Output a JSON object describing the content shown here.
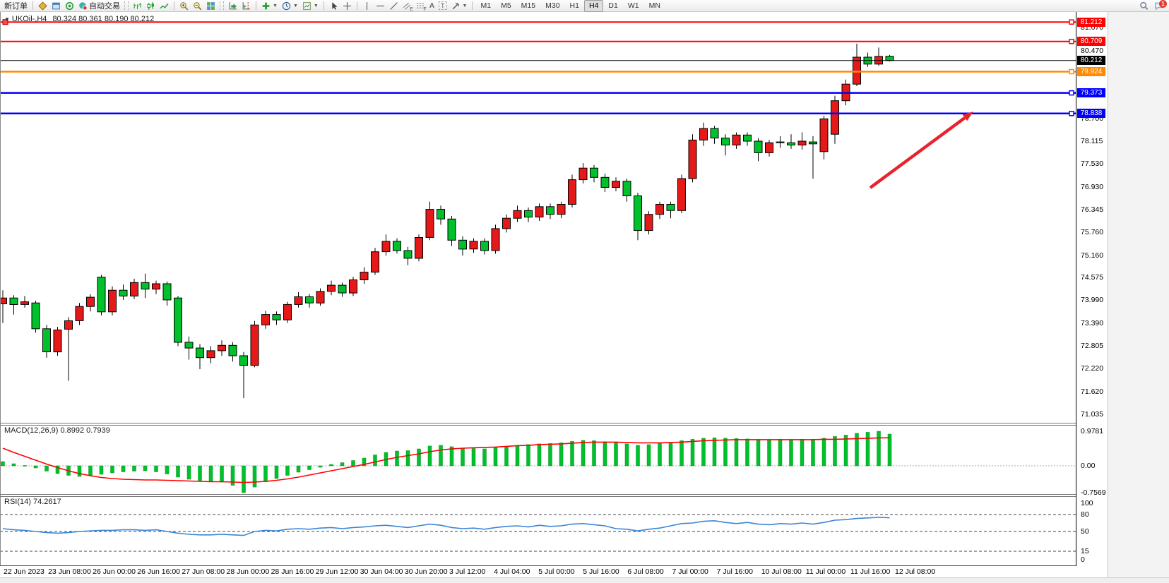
{
  "toolbar": {
    "new_order": "新订单",
    "autotrade": "自动交易",
    "chat_badge": "1",
    "tool_letters": {
      "text": "A",
      "label": "T",
      "channel": "E",
      "fib": "F"
    },
    "timeframes": [
      "M1",
      "M5",
      "M15",
      "M30",
      "H1",
      "H4",
      "D1",
      "W1",
      "MN"
    ],
    "active_timeframe": "H4"
  },
  "chart_data": {
    "type": "candlestick",
    "title": "UKOil-,H4",
    "ohlc_text": "80.324 80.361 80.190 80.212",
    "ohlc_current": {
      "open": 80.324,
      "high": 80.361,
      "low": 80.19,
      "close": 80.212
    },
    "price_axis_ticks": [
      "81.070",
      "80.470",
      "78.700",
      "78.115",
      "77.530",
      "76.930",
      "76.345",
      "75.760",
      "75.160",
      "74.575",
      "73.990",
      "73.390",
      "72.805",
      "72.220",
      "71.620",
      "71.035"
    ],
    "price_range_visible": [
      70.81,
      81.47
    ],
    "time_labels": [
      "22 Jun 2023",
      "23 Jun 08:00",
      "26 Jun 00:00",
      "26 Jun 16:00",
      "27 Jun 08:00",
      "28 Jun 00:00",
      "28 Jun 16:00",
      "29 Jun 12:00",
      "30 Jun 04:00",
      "30 Jun 20:00",
      "3 Jul 12:00",
      "4 Jul 04:00",
      "5 Jul 00:00",
      "5 Jul 16:00",
      "6 Jul 08:00",
      "7 Jul 00:00",
      "7 Jul 16:00",
      "10 Jul 08:00",
      "11 Jul 00:00",
      "11 Jul 16:00",
      "12 Jul 08:00"
    ],
    "hlines": [
      {
        "price": 81.212,
        "label": "81.212",
        "color": "#ff0000",
        "width": 2,
        "handles": true,
        "left_handle": true
      },
      {
        "price": 80.709,
        "label": "80.709",
        "color": "#ff0000",
        "width": 2,
        "handles": true,
        "left_handle": false
      },
      {
        "price": 80.212,
        "label": "80.212",
        "color": "#000000",
        "width": 1,
        "handles": false,
        "left_handle": false
      },
      {
        "price": 79.924,
        "label": "79.924",
        "color": "#ff8a00",
        "width": 2.5,
        "handles": true,
        "left_handle": false
      },
      {
        "price": 79.373,
        "label": "79.373",
        "color": "#0000ff",
        "width": 2.5,
        "handles": true,
        "left_handle": false
      },
      {
        "price": 78.838,
        "label": "78.838",
        "color": "#0000ff",
        "width": 2.5,
        "handles": true,
        "left_handle": false
      }
    ],
    "arrow": {
      "from": [
        1232,
        266
      ],
      "to": [
        1378,
        158
      ],
      "color": "#e8232d"
    },
    "candles": [
      [
        73.9,
        74.25,
        73.4,
        74.05
      ],
      [
        74.05,
        74.12,
        73.62,
        73.88
      ],
      [
        73.88,
        74.1,
        73.8,
        73.95
      ],
      [
        73.92,
        73.98,
        73.15,
        73.25
      ],
      [
        73.25,
        73.35,
        72.5,
        72.65
      ],
      [
        72.65,
        73.3,
        72.55,
        73.22
      ],
      [
        73.24,
        73.55,
        71.9,
        73.46
      ],
      [
        73.46,
        73.92,
        73.35,
        73.83
      ],
      [
        73.83,
        74.15,
        73.7,
        74.07
      ],
      [
        74.59,
        74.65,
        73.6,
        73.69
      ],
      [
        73.69,
        74.35,
        73.6,
        74.25
      ],
      [
        74.25,
        74.4,
        74.0,
        74.1
      ],
      [
        74.1,
        74.55,
        74.02,
        74.45
      ],
      [
        74.45,
        74.68,
        74.05,
        74.28
      ],
      [
        74.28,
        74.5,
        74.15,
        74.42
      ],
      [
        74.42,
        74.48,
        73.85,
        74.0
      ],
      [
        74.05,
        74.1,
        72.8,
        72.9
      ],
      [
        72.9,
        73.05,
        72.45,
        72.75
      ],
      [
        72.75,
        72.85,
        72.2,
        72.5
      ],
      [
        72.5,
        72.8,
        72.35,
        72.68
      ],
      [
        72.68,
        72.95,
        72.55,
        72.82
      ],
      [
        72.82,
        72.9,
        72.4,
        72.55
      ],
      [
        72.55,
        72.65,
        71.45,
        72.3
      ],
      [
        72.3,
        73.45,
        72.25,
        73.35
      ],
      [
        73.35,
        73.72,
        73.25,
        73.62
      ],
      [
        73.62,
        73.7,
        73.35,
        73.48
      ],
      [
        73.48,
        73.95,
        73.4,
        73.88
      ],
      [
        73.88,
        74.2,
        73.8,
        74.08
      ],
      [
        74.08,
        74.15,
        73.8,
        73.92
      ],
      [
        73.92,
        74.3,
        73.85,
        74.22
      ],
      [
        74.22,
        74.5,
        74.12,
        74.38
      ],
      [
        74.38,
        74.45,
        74.08,
        74.18
      ],
      [
        74.18,
        74.6,
        74.1,
        74.52
      ],
      [
        74.52,
        74.85,
        74.42,
        74.72
      ],
      [
        74.72,
        75.35,
        74.65,
        75.25
      ],
      [
        75.25,
        75.7,
        75.15,
        75.52
      ],
      [
        75.52,
        75.6,
        75.2,
        75.28
      ],
      [
        75.28,
        75.38,
        74.9,
        75.08
      ],
      [
        75.08,
        75.7,
        75.0,
        75.62
      ],
      [
        75.62,
        76.55,
        75.55,
        76.35
      ],
      [
        76.35,
        76.45,
        75.95,
        76.1
      ],
      [
        76.1,
        76.18,
        75.4,
        75.55
      ],
      [
        75.55,
        75.65,
        75.15,
        75.32
      ],
      [
        75.32,
        75.6,
        75.22,
        75.52
      ],
      [
        75.52,
        75.6,
        75.18,
        75.28
      ],
      [
        75.28,
        75.95,
        75.2,
        75.85
      ],
      [
        75.85,
        76.22,
        75.75,
        76.12
      ],
      [
        76.12,
        76.45,
        76.02,
        76.32
      ],
      [
        76.32,
        76.4,
        76.02,
        76.15
      ],
      [
        76.15,
        76.5,
        76.05,
        76.42
      ],
      [
        76.42,
        76.5,
        76.1,
        76.22
      ],
      [
        76.22,
        76.55,
        76.12,
        76.48
      ],
      [
        76.48,
        77.25,
        76.4,
        77.12
      ],
      [
        77.12,
        77.55,
        77.02,
        77.42
      ],
      [
        77.42,
        77.5,
        77.05,
        77.18
      ],
      [
        77.18,
        77.28,
        76.8,
        76.92
      ],
      [
        76.92,
        77.18,
        76.82,
        77.08
      ],
      [
        77.08,
        77.15,
        76.55,
        76.7
      ],
      [
        76.7,
        76.78,
        75.55,
        75.8
      ],
      [
        75.8,
        76.3,
        75.7,
        76.22
      ],
      [
        76.22,
        76.55,
        76.1,
        76.48
      ],
      [
        76.48,
        76.55,
        76.12,
        76.32
      ],
      [
        76.32,
        77.25,
        76.25,
        77.15
      ],
      [
        77.15,
        78.3,
        77.05,
        78.15
      ],
      [
        78.15,
        78.6,
        78.0,
        78.45
      ],
      [
        78.45,
        78.52,
        78.05,
        78.2
      ],
      [
        78.2,
        78.3,
        77.75,
        78.02
      ],
      [
        78.02,
        78.35,
        77.92,
        78.28
      ],
      [
        78.28,
        78.35,
        78.0,
        78.12
      ],
      [
        78.12,
        78.2,
        77.6,
        77.82
      ],
      [
        77.82,
        78.15,
        77.72,
        78.08
      ],
      [
        78.1,
        78.25,
        77.95,
        78.08
      ],
      [
        78.08,
        78.3,
        77.92,
        78.02
      ],
      [
        78.02,
        78.35,
        77.9,
        78.12
      ],
      [
        78.1,
        78.25,
        77.15,
        78.05
      ],
      [
        77.85,
        78.78,
        77.65,
        78.7
      ],
      [
        78.3,
        79.3,
        78.05,
        79.17
      ],
      [
        79.17,
        79.72,
        79.05,
        79.6
      ],
      [
        79.6,
        80.65,
        79.55,
        80.3
      ],
      [
        80.3,
        80.42,
        80.05,
        80.12
      ],
      [
        80.12,
        80.55,
        80.08,
        80.32
      ],
      [
        80.324,
        80.361,
        80.19,
        80.212
      ]
    ],
    "indicators": {
      "macd": {
        "label": "MACD(12,26,9) 0.8992 0.7939",
        "axis_ticks": [
          "0.9781",
          "0.00",
          "-0.7569"
        ],
        "range": [
          -0.798,
          1.158
        ],
        "histogram": [
          0.12,
          0.06,
          0.01,
          -0.06,
          -0.15,
          -0.22,
          -0.27,
          -0.3,
          -0.28,
          -0.24,
          -0.2,
          -0.17,
          -0.15,
          -0.14,
          -0.17,
          -0.23,
          -0.32,
          -0.38,
          -0.42,
          -0.44,
          -0.46,
          -0.55,
          -0.7569,
          -0.6,
          -0.45,
          -0.36,
          -0.27,
          -0.18,
          -0.11,
          -0.04,
          0.04,
          0.09,
          0.15,
          0.22,
          0.31,
          0.38,
          0.42,
          0.43,
          0.48,
          0.56,
          0.58,
          0.54,
          0.5,
          0.49,
          0.48,
          0.51,
          0.55,
          0.58,
          0.6,
          0.62,
          0.63,
          0.65,
          0.69,
          0.72,
          0.71,
          0.68,
          0.65,
          0.62,
          0.58,
          0.6,
          0.63,
          0.66,
          0.71,
          0.75,
          0.78,
          0.79,
          0.78,
          0.77,
          0.76,
          0.74,
          0.74,
          0.75,
          0.74,
          0.75,
          0.75,
          0.78,
          0.83,
          0.87,
          0.92,
          0.95,
          0.9781,
          0.8992
        ],
        "signal": [
          0.5,
          0.38,
          0.27,
          0.16,
          0.05,
          -0.05,
          -0.14,
          -0.22,
          -0.28,
          -0.33,
          -0.36,
          -0.38,
          -0.39,
          -0.4,
          -0.4,
          -0.41,
          -0.42,
          -0.43,
          -0.44,
          -0.45,
          -0.45,
          -0.46,
          -0.47,
          -0.46,
          -0.44,
          -0.41,
          -0.37,
          -0.32,
          -0.26,
          -0.2,
          -0.14,
          -0.08,
          -0.02,
          0.04,
          0.11,
          0.18,
          0.24,
          0.29,
          0.34,
          0.4,
          0.45,
          0.48,
          0.5,
          0.51,
          0.52,
          0.53,
          0.55,
          0.57,
          0.58,
          0.6,
          0.61,
          0.62,
          0.64,
          0.66,
          0.67,
          0.67,
          0.67,
          0.66,
          0.65,
          0.65,
          0.65,
          0.66,
          0.67,
          0.69,
          0.71,
          0.72,
          0.73,
          0.74,
          0.74,
          0.74,
          0.74,
          0.74,
          0.74,
          0.74,
          0.74,
          0.75,
          0.75,
          0.76,
          0.77,
          0.78,
          0.79,
          0.7939
        ]
      },
      "rsi": {
        "label": "RSI(14) 74.2617",
        "axis_ticks": [
          "100",
          "80",
          "50",
          "15",
          "0"
        ],
        "levels": [
          80,
          50,
          15
        ],
        "range": [
          0,
          100
        ],
        "values": [
          55,
          53,
          52,
          50,
          48,
          47,
          48,
          50,
          51,
          52,
          52,
          53,
          53,
          52,
          53,
          50,
          47,
          45,
          44,
          44,
          45,
          44,
          43,
          50,
          52,
          51,
          54,
          55,
          54,
          56,
          57,
          55,
          57,
          58,
          60,
          61,
          59,
          57,
          60,
          63,
          61,
          57,
          55,
          56,
          54,
          57,
          59,
          60,
          58,
          61,
          59,
          60,
          63,
          64,
          62,
          60,
          55,
          54,
          51,
          54,
          56,
          60,
          64,
          65,
          68,
          69,
          66,
          64,
          66,
          63,
          62,
          64,
          63,
          65,
          63,
          66,
          70,
          71,
          73,
          74,
          75,
          74.26
        ]
      }
    },
    "colors": {
      "bull": "#e61919",
      "bear": "#00c12b",
      "wick": "#000000",
      "macd_hist": "#00c12b",
      "macd_signal": "#ff0000",
      "rsi_line": "#3b86d6",
      "arrow": "#e8232d"
    }
  }
}
